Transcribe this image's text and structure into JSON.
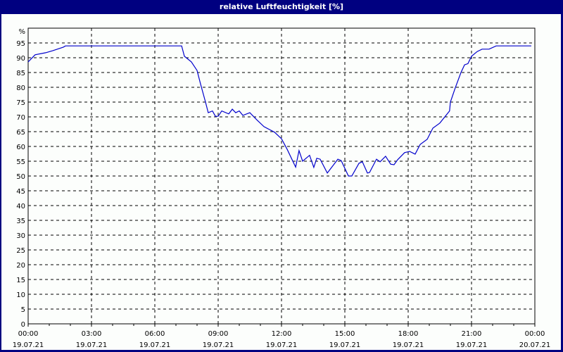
{
  "window": {
    "title": "relative Luftfeuchtigkeit [%]"
  },
  "chart_data": {
    "type": "line",
    "title": "relative Luftfeuchtigkeit [%]",
    "xlabel": "",
    "ylabel": "%",
    "ylim": [
      0,
      100
    ],
    "xlim_hours": [
      0,
      24
    ],
    "grid": true,
    "y_ticks": [
      0,
      5,
      10,
      15,
      20,
      25,
      30,
      35,
      40,
      45,
      50,
      55,
      60,
      65,
      70,
      75,
      80,
      85,
      90,
      95
    ],
    "y_unit_label": "%",
    "x_ticks": [
      {
        "time": "00:00",
        "date": "19.07.21"
      },
      {
        "time": "03:00",
        "date": "19.07.21"
      },
      {
        "time": "06:00",
        "date": "19.07.21"
      },
      {
        "time": "09:00",
        "date": "19.07.21"
      },
      {
        "time": "12:00",
        "date": "19.07.21"
      },
      {
        "time": "15:00",
        "date": "19.07.21"
      },
      {
        "time": "18:00",
        "date": "19.07.21"
      },
      {
        "time": "21:00",
        "date": "19.07.21"
      },
      {
        "time": "00:00",
        "date": "20.07.21"
      }
    ],
    "series": [
      {
        "name": "relative Luftfeuchtigkeit",
        "color": "#0000cc",
        "x_hours": [
          0.0,
          0.33,
          0.83,
          1.17,
          1.67,
          1.77,
          7.27,
          7.4,
          7.73,
          8.0,
          8.17,
          8.4,
          8.53,
          8.73,
          8.87,
          9.0,
          9.17,
          9.5,
          9.67,
          9.83,
          10.0,
          10.17,
          10.5,
          10.83,
          11.17,
          11.67,
          12.0,
          12.27,
          12.67,
          12.83,
          13.0,
          13.33,
          13.53,
          13.67,
          13.83,
          14.17,
          14.67,
          14.83,
          15.17,
          15.33,
          15.67,
          15.83,
          16.07,
          16.17,
          16.5,
          16.67,
          16.93,
          17.17,
          17.33,
          17.5,
          17.83,
          18.07,
          18.33,
          18.57,
          18.9,
          19.17,
          19.5,
          19.96,
          20.0,
          20.23,
          20.5,
          20.67,
          20.83,
          21.0,
          21.27,
          21.5,
          21.83,
          22.17,
          22.83,
          23.1,
          23.83
        ],
        "values": [
          88.6,
          91.0,
          91.7,
          92.4,
          93.6,
          94.0,
          94.0,
          90.5,
          88.6,
          85.7,
          81.0,
          75.0,
          71.4,
          72.0,
          70.2,
          70.2,
          72.0,
          71.0,
          72.6,
          71.4,
          72.0,
          70.5,
          71.4,
          69.0,
          66.7,
          64.8,
          62.6,
          59.0,
          53.0,
          58.6,
          55.0,
          57.0,
          52.9,
          56.0,
          55.7,
          51.0,
          55.7,
          55.2,
          50.0,
          50.0,
          54.3,
          54.8,
          51.0,
          51.2,
          55.7,
          54.8,
          56.7,
          54.0,
          53.8,
          55.5,
          57.9,
          58.3,
          57.4,
          60.7,
          62.4,
          66.2,
          67.9,
          72.0,
          75.0,
          79.8,
          85.0,
          87.6,
          88.0,
          90.5,
          92.1,
          92.9,
          92.9,
          94.0,
          94.0,
          94.0,
          94.0
        ]
      }
    ]
  }
}
